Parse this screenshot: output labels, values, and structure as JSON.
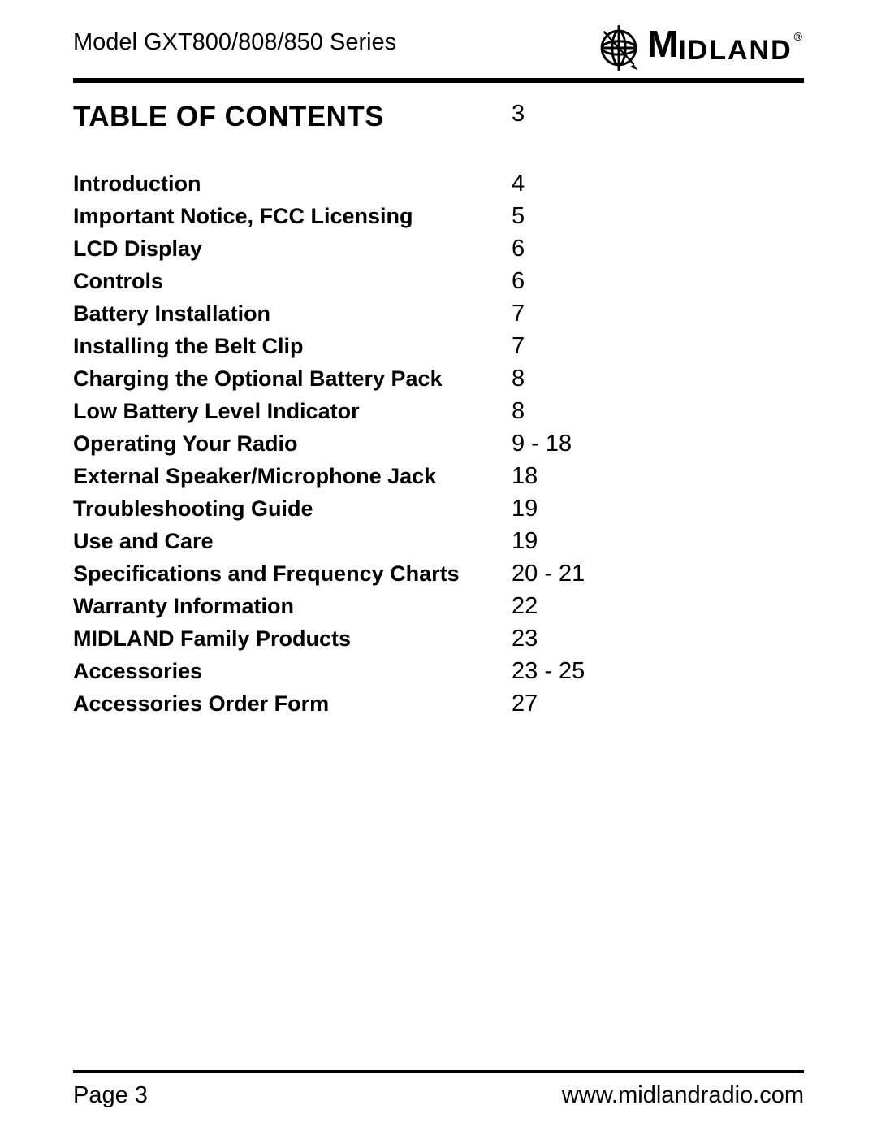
{
  "header": {
    "model_line": "Model GXT800/808/850 Series",
    "brand_letter": "M",
    "brand_rest": "IDLAND",
    "registered": "®"
  },
  "title": {
    "text": "TABLE OF CONTENTS",
    "page": "3"
  },
  "toc": [
    {
      "title": "Introduction",
      "page": "4"
    },
    {
      "title": "Important Notice, FCC Licensing",
      "page": "5"
    },
    {
      "title": "LCD Display",
      "page": "6"
    },
    {
      "title": "Controls",
      "page": "6"
    },
    {
      "title": "Battery Installation",
      "page": "7"
    },
    {
      "title": "Installing the Belt Clip",
      "page": "7"
    },
    {
      "title": "Charging the Optional Battery Pack",
      "page": "8"
    },
    {
      "title": "Low Battery Level Indicator",
      "page": "8"
    },
    {
      "title": "Operating Your Radio",
      "page": "9 - 18"
    },
    {
      "title": "External Speaker/Microphone Jack",
      "page": "18"
    },
    {
      "title": "Troubleshooting Guide",
      "page": "19"
    },
    {
      "title": "Use and Care",
      "page": "19"
    },
    {
      "title": "Specifications and Frequency Charts",
      "page": "20 - 21"
    },
    {
      "title": "Warranty Information",
      "page": "22"
    },
    {
      "title": "MIDLAND Family Products",
      "page": "23"
    },
    {
      "title": "Accessories",
      "page": "23 - 25"
    },
    {
      "title": "Accessories Order Form",
      "page": "27"
    }
  ],
  "footer": {
    "page_label": "Page 3",
    "url": "www.midlandradio.com"
  }
}
